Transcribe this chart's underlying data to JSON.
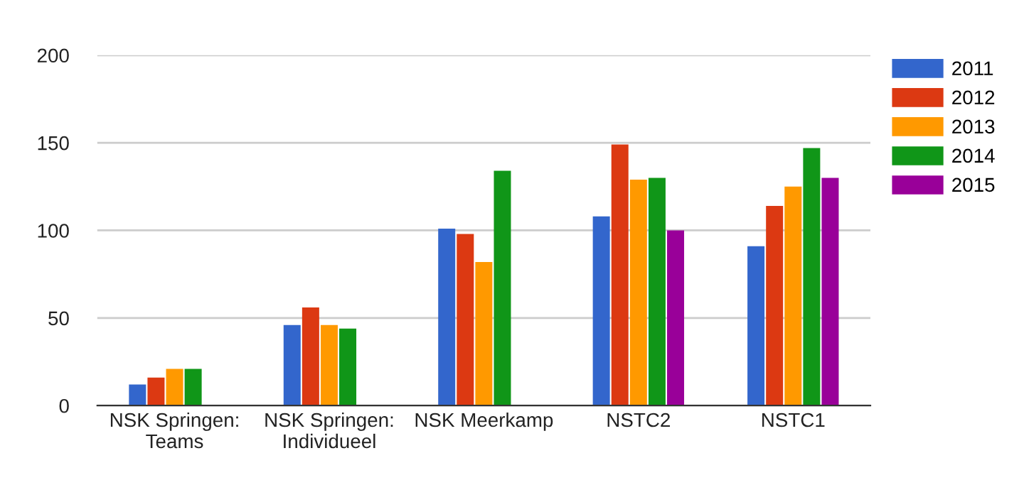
{
  "chart_data": {
    "type": "bar",
    "categories": [
      "NSK Springen:\nTeams",
      "NSK Springen:\nIndividueel",
      "NSK Meerkamp",
      "NSTC2",
      "NSTC1"
    ],
    "series": [
      {
        "name": "2011",
        "color": "#3366cc",
        "values": [
          12,
          46,
          101,
          108,
          91
        ]
      },
      {
        "name": "2012",
        "color": "#dc3912",
        "values": [
          16,
          56,
          98,
          149,
          114
        ]
      },
      {
        "name": "2013",
        "color": "#ff9900",
        "values": [
          21,
          46,
          82,
          129,
          125
        ]
      },
      {
        "name": "2014",
        "color": "#109618",
        "values": [
          21,
          44,
          134,
          130,
          147
        ]
      },
      {
        "name": "2015",
        "color": "#990099",
        "values": [
          null,
          null,
          null,
          100,
          130
        ]
      }
    ],
    "ylim": [
      0,
      200
    ],
    "yticks": [
      0,
      50,
      100,
      150,
      200
    ],
    "grid": "y",
    "legend": "top right"
  }
}
